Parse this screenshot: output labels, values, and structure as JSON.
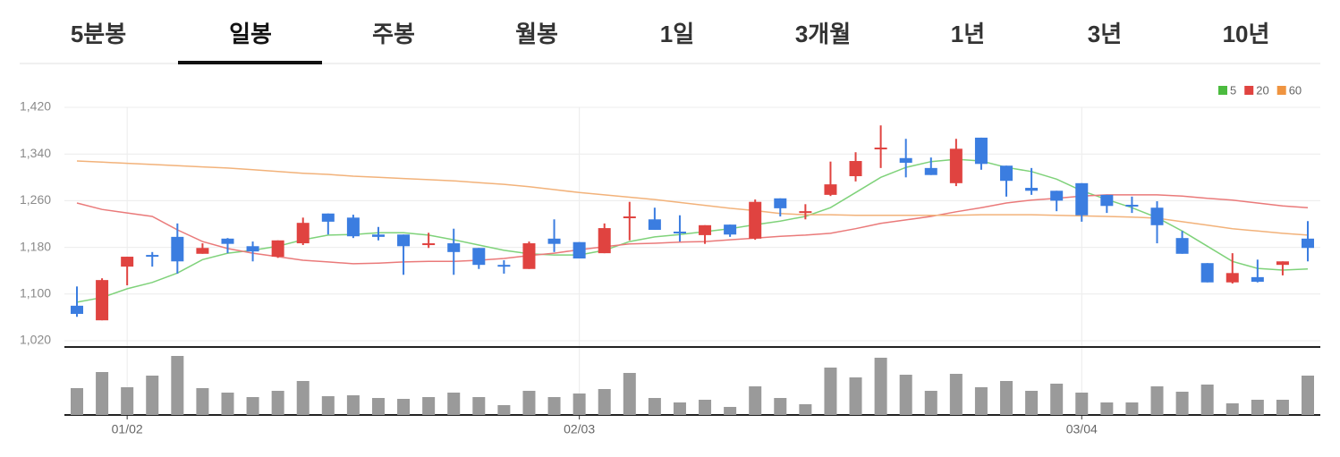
{
  "tabs": [
    "5분봉",
    "일봉",
    "주봉",
    "월봉",
    "1일",
    "3개월",
    "1년",
    "3년",
    "10년"
  ],
  "active_tab": 1,
  "chart_data": {
    "type": "candlestick",
    "categories": [
      null,
      null,
      "01/02",
      null,
      null,
      null,
      null,
      null,
      null,
      null,
      null,
      null,
      null,
      null,
      null,
      null,
      null,
      null,
      null,
      null,
      "02/03",
      null,
      null,
      null,
      null,
      null,
      null,
      null,
      null,
      null,
      null,
      null,
      null,
      null,
      null,
      null,
      null,
      null,
      null,
      null,
      "03/04",
      null,
      null,
      null,
      null,
      null,
      null,
      null,
      null,
      null
    ],
    "open": [
      1080,
      1055,
      1147,
      1167,
      1198,
      1169,
      1195,
      1182,
      1164,
      1187,
      1238,
      1231,
      1202,
      1202,
      1184,
      1187,
      1179,
      1150,
      1143,
      1195,
      1189,
      1170,
      1231,
      1228,
      1207,
      1201,
      1219,
      1195,
      1264,
      1239,
      1270,
      1302,
      1348,
      1333,
      1316,
      1290,
      1368,
      1320,
      1282,
      1277,
      1290,
      1270,
      1253,
      1248,
      1196,
      1153,
      1120,
      1129,
      1150,
      1195
    ],
    "high": [
      1113,
      1127,
      1164,
      1172,
      1221,
      1187,
      1196,
      1190,
      1192,
      1231,
      1238,
      1236,
      1215,
      1202,
      1205,
      1212,
      1179,
      1158,
      1190,
      1228,
      1189,
      1221,
      1258,
      1248,
      1235,
      1218,
      1219,
      1262,
      1264,
      1254,
      1327,
      1343,
      1389,
      1366,
      1334,
      1366,
      1368,
      1320,
      1316,
      1277,
      1290,
      1270,
      1267,
      1259,
      1208,
      1153,
      1170,
      1159,
      1156,
      1225
    ],
    "low": [
      1061,
      1055,
      1115,
      1147,
      1135,
      1169,
      1170,
      1156,
      1162,
      1184,
      1202,
      1196,
      1192,
      1133,
      1179,
      1133,
      1143,
      1135,
      1143,
      1172,
      1161,
      1170,
      1192,
      1210,
      1190,
      1186,
      1198,
      1193,
      1233,
      1228,
      1268,
      1293,
      1316,
      1300,
      1304,
      1285,
      1313,
      1267,
      1270,
      1242,
      1224,
      1239,
      1239,
      1187,
      1169,
      1120,
      1118,
      1120,
      1132,
      1156
    ],
    "close": [
      1066,
      1124,
      1164,
      1164,
      1156,
      1179,
      1186,
      1173,
      1192,
      1222,
      1224,
      1199,
      1198,
      1182,
      1187,
      1172,
      1150,
      1147,
      1187,
      1186,
      1161,
      1213,
      1233,
      1210,
      1204,
      1218,
      1202,
      1258,
      1247,
      1242,
      1288,
      1328,
      1351,
      1325,
      1304,
      1349,
      1323,
      1294,
      1277,
      1260,
      1235,
      1251,
      1250,
      1218,
      1169,
      1120,
      1136,
      1121,
      1156,
      1179
    ],
    "volume": [
      30,
      48,
      31,
      44,
      66,
      30,
      25,
      20,
      27,
      38,
      21,
      22,
      19,
      18,
      20,
      25,
      20,
      11,
      27,
      20,
      24,
      29,
      47,
      19,
      14,
      17,
      9,
      32,
      19,
      12,
      53,
      42,
      64,
      45,
      27,
      46,
      31,
      38,
      27,
      35,
      25,
      14,
      14,
      32,
      26,
      34,
      13,
      17,
      17,
      44
    ],
    "volume_ylim": [
      0,
      74
    ],
    "up_color": "#e04340",
    "down_color": "#3b7de0",
    "volume_color": "#9a9a9a",
    "series": [
      {
        "name": "5",
        "color": "#7fd27a",
        "legend_color": "#4cbb3f",
        "values": [
          1086,
          1094,
          1109,
          1120,
          1136,
          1159,
          1170,
          1175,
          1182,
          1193,
          1201,
          1202,
          1205,
          1205,
          1201,
          1193,
          1184,
          1175,
          1169,
          1167,
          1167,
          1175,
          1190,
          1198,
          1202,
          1207,
          1212,
          1219,
          1225,
          1233,
          1248,
          1274,
          1300,
          1317,
          1327,
          1331,
          1328,
          1317,
          1310,
          1297,
          1277,
          1262,
          1248,
          1231,
          1208,
          1182,
          1156,
          1144,
          1141,
          1143
        ]
      },
      {
        "name": "20",
        "color": "#ea7a7a",
        "legend_color": "#e04340",
        "values": [
          1256,
          1245,
          1239,
          1233,
          1210,
          1190,
          1178,
          1170,
          1164,
          1158,
          1155,
          1152,
          1153,
          1155,
          1156,
          1156,
          1158,
          1161,
          1166,
          1170,
          1176,
          1181,
          1186,
          1187,
          1189,
          1190,
          1193,
          1196,
          1199,
          1201,
          1204,
          1212,
          1221,
          1227,
          1233,
          1241,
          1248,
          1256,
          1261,
          1264,
          1268,
          1270,
          1270,
          1270,
          1268,
          1264,
          1261,
          1256,
          1251,
          1248
        ]
      },
      {
        "name": "60",
        "color": "#f2b27a",
        "legend_color": "#ef9440",
        "values": [
          1328,
          1326,
          1324,
          1322,
          1320,
          1318,
          1316,
          1313,
          1310,
          1307,
          1305,
          1302,
          1300,
          1298,
          1296,
          1294,
          1291,
          1288,
          1284,
          1279,
          1274,
          1270,
          1266,
          1262,
          1257,
          1252,
          1247,
          1243,
          1238,
          1236,
          1236,
          1235,
          1235,
          1235,
          1235,
          1235,
          1236,
          1236,
          1236,
          1235,
          1234,
          1233,
          1232,
          1230,
          1224,
          1218,
          1212,
          1208,
          1204,
          1201
        ]
      }
    ],
    "ylim": [
      1020,
      1420
    ],
    "yticks": [
      {
        "value": 1420,
        "label": "1,420"
      },
      {
        "value": 1340,
        "label": "1,340"
      },
      {
        "value": 1260,
        "label": "1,260"
      },
      {
        "value": 1180,
        "label": "1,180"
      },
      {
        "value": 1100,
        "label": "1,100"
      },
      {
        "value": 1020,
        "label": "1,020"
      }
    ],
    "grid": true
  }
}
